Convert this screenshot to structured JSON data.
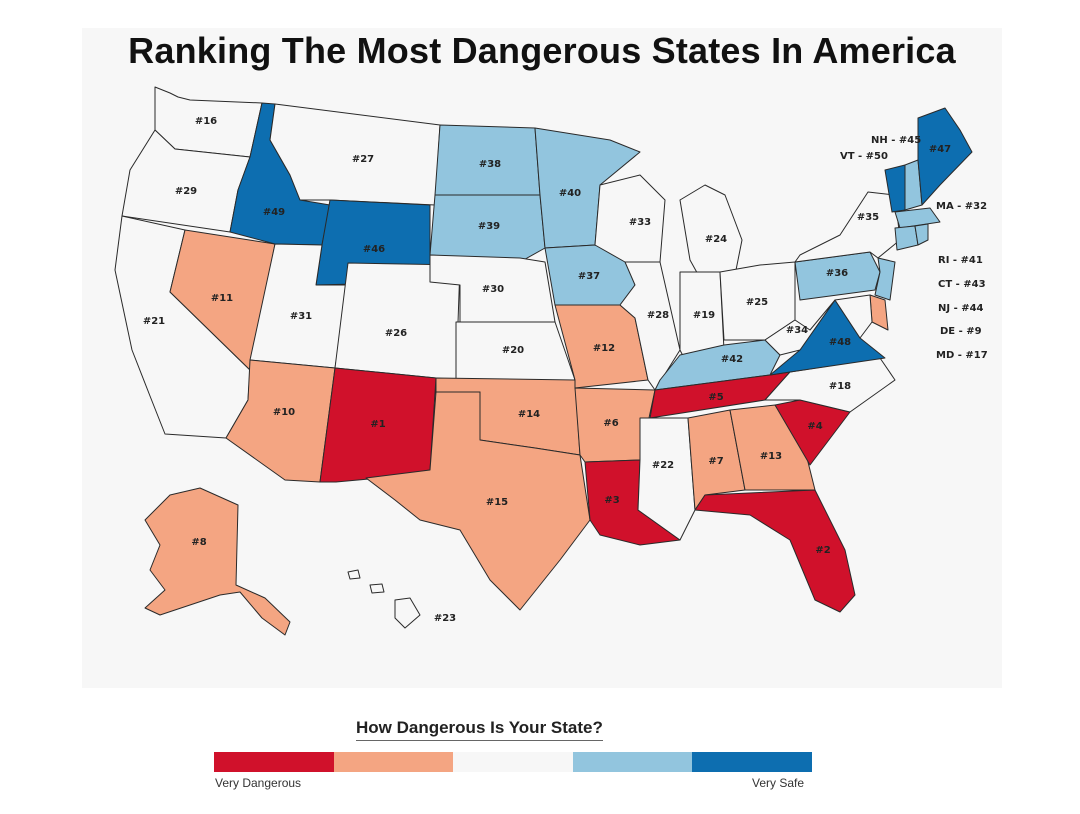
{
  "title": "Ranking The Most Dangerous States In America",
  "legend": {
    "title": "How Dangerous Is Your State?",
    "low_label": "Very Dangerous",
    "high_label": "Very Safe",
    "colors": [
      "#d0112b",
      "#f4a582",
      "#f7f7f7",
      "#92c5de",
      "#0d6eb0"
    ]
  },
  "states": {
    "WA": "#16",
    "OR": "#29",
    "CA": "#21",
    "NV": "#11",
    "ID": "#49",
    "MT": "#27",
    "WY": "#46",
    "UT": "#31",
    "AZ": "#10",
    "CO": "#26",
    "NM": "#1",
    "ND": "#38",
    "SD": "#39",
    "NE": "#30",
    "KS": "#20",
    "OK": "#14",
    "TX": "#15",
    "MN": "#40",
    "IA": "#37",
    "MO": "#12",
    "AR": "#6",
    "LA": "#3",
    "WI": "#33",
    "IL": "#28",
    "MI": "#24",
    "IN": "#19",
    "OH": "#25",
    "KY": "#42",
    "TN": "#5",
    "MS": "#22",
    "AL": "#7",
    "GA": "#13",
    "FL": "#2",
    "SC": "#4",
    "NC": "#18",
    "VA": "#48",
    "WV": "#34",
    "PA": "#36",
    "NY": "#35",
    "ME": "#47",
    "AK": "#8",
    "HI": "#23"
  },
  "side_labels": {
    "NH": "NH - #45",
    "VT": "VT - #50",
    "MA": "MA - #32",
    "RI": "RI - #41",
    "CT": "CT - #43",
    "NJ": "NJ - #44",
    "DE": "DE - #9",
    "MD": "MD - #17"
  }
}
